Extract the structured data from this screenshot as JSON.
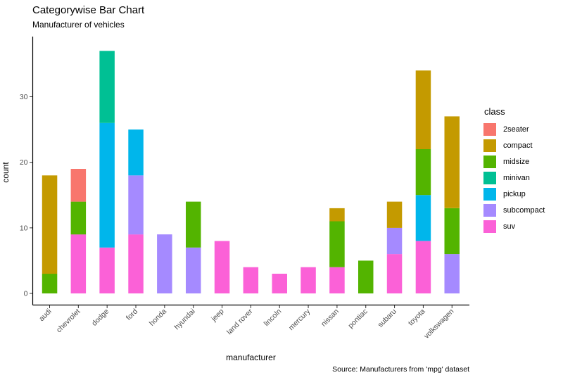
{
  "chart_data": {
    "type": "bar",
    "stacked": true,
    "title": "Categorywise Bar Chart",
    "subtitle": "Manufacturer of vehicles",
    "caption": "Source: Manufacturers from 'mpg' dataset",
    "xlabel": "manufacturer",
    "ylabel": "count",
    "legend": {
      "title": "class",
      "position": "right"
    },
    "grid": false,
    "axis_color": "#000000",
    "tick_color": "#333333",
    "tick_label_color": "#4d4d4d",
    "yticks": [
      0,
      10,
      20,
      30
    ],
    "ylim": [
      0,
      38.85
    ],
    "categories": [
      "audi",
      "chevrolet",
      "dodge",
      "ford",
      "honda",
      "hyundai",
      "jeep",
      "land rover",
      "lincoln",
      "mercury",
      "nissan",
      "pontiac",
      "subaru",
      "toyota",
      "volkswagen"
    ],
    "series": [
      {
        "name": "2seater",
        "color": "#F8766D",
        "values": [
          0,
          5,
          0,
          0,
          0,
          0,
          0,
          0,
          0,
          0,
          0,
          0,
          0,
          0,
          0
        ]
      },
      {
        "name": "compact",
        "color": "#C49A00",
        "values": [
          15,
          0,
          0,
          0,
          0,
          0,
          0,
          0,
          0,
          0,
          2,
          0,
          4,
          12,
          14
        ]
      },
      {
        "name": "midsize",
        "color": "#53B400",
        "values": [
          3,
          5,
          0,
          0,
          0,
          7,
          0,
          0,
          0,
          0,
          7,
          5,
          0,
          7,
          7
        ]
      },
      {
        "name": "minivan",
        "color": "#00C094",
        "values": [
          0,
          0,
          11,
          0,
          0,
          0,
          0,
          0,
          0,
          0,
          0,
          0,
          0,
          0,
          0
        ]
      },
      {
        "name": "pickup",
        "color": "#00B6EB",
        "values": [
          0,
          0,
          19,
          7,
          0,
          0,
          0,
          0,
          0,
          0,
          0,
          0,
          0,
          7,
          0
        ]
      },
      {
        "name": "subcompact",
        "color": "#A58AFF",
        "values": [
          0,
          0,
          0,
          9,
          9,
          7,
          0,
          0,
          0,
          0,
          0,
          0,
          4,
          0,
          6
        ]
      },
      {
        "name": "suv",
        "color": "#FB61D7",
        "values": [
          0,
          9,
          7,
          9,
          0,
          0,
          8,
          4,
          3,
          4,
          4,
          0,
          6,
          8,
          0
        ]
      }
    ],
    "stack_order_bottom_to_top": [
      "suv",
      "subcompact",
      "pickup",
      "minivan",
      "midsize",
      "compact",
      "2seater"
    ],
    "totals": [
      18,
      19,
      37,
      25,
      9,
      14,
      8,
      4,
      3,
      4,
      13,
      5,
      14,
      34,
      27
    ]
  }
}
